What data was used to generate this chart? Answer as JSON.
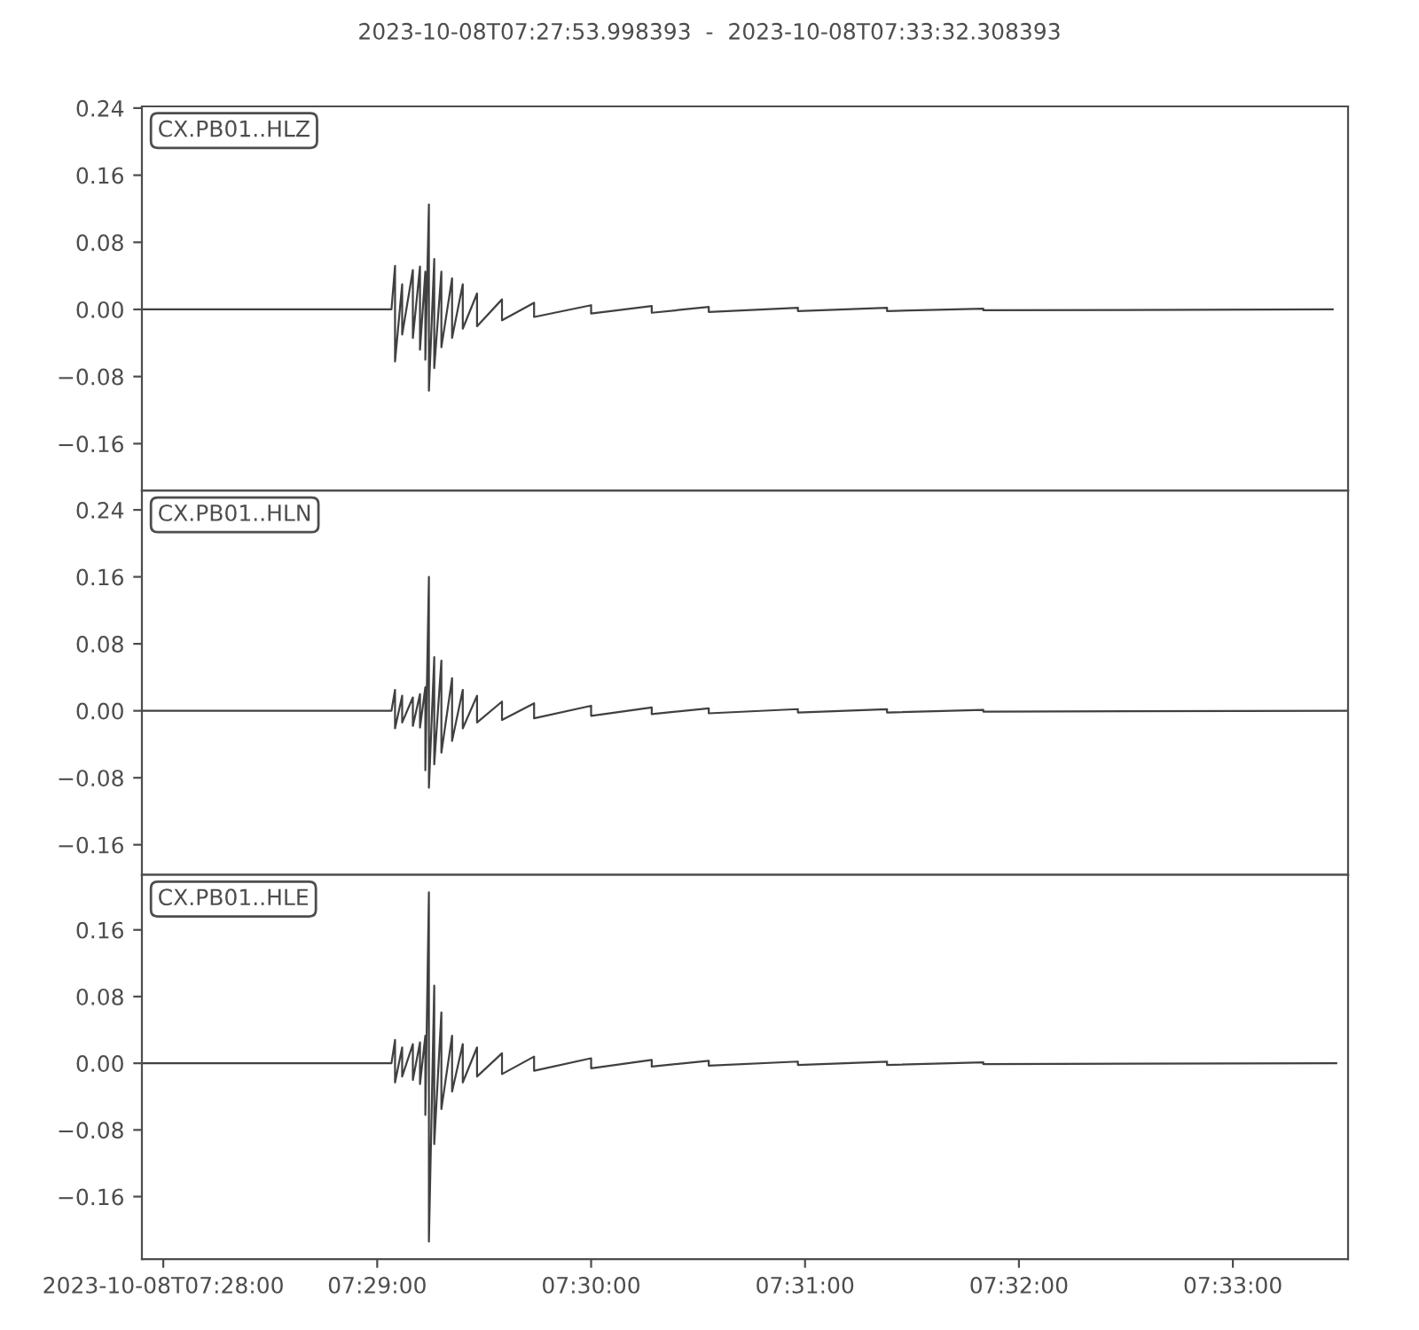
{
  "chart_data": [
    {
      "type": "line",
      "title": "2023-10-08T07:27:53.998393  -  2023-10-08T07:33:32.308393",
      "annotations": [
        "CX.PB01..HLZ"
      ],
      "tick_labels": "y",
      "grid": false,
      "marker": "none",
      "line_style": "solid",
      "xlim": [
        "2023-10-08T07:27:53.998393",
        "2023-10-08T07:33:32.308393"
      ],
      "ylim": [
        -0.216,
        0.242
      ],
      "yticks": [
        {
          "value": -0.16,
          "label": "−0.16"
        },
        {
          "value": -0.08,
          "label": "−0.08"
        },
        {
          "value": 0,
          "label": "0.00"
        },
        {
          "value": 0.08,
          "label": "0.08"
        },
        {
          "value": 0.16,
          "label": "0.16"
        },
        {
          "value": 0.24,
          "label": "0.24"
        }
      ],
      "x": [
        "2023-10-08T07:27:54",
        "2023-10-08T07:29:04",
        "2023-10-08T07:29:05",
        "2023-10-08T07:29:05",
        "2023-10-08T07:29:07",
        "2023-10-08T07:29:07",
        "2023-10-08T07:29:10",
        "2023-10-08T07:29:10",
        "2023-10-08T07:29:12",
        "2023-10-08T07:29:12",
        "2023-10-08T07:29:13.5",
        "2023-10-08T07:29:13.5",
        "2023-10-08T07:29:14.5",
        "2023-10-08T07:29:14.5",
        "2023-10-08T07:29:16",
        "2023-10-08T07:29:16",
        "2023-10-08T07:29:18",
        "2023-10-08T07:29:18",
        "2023-10-08T07:29:21",
        "2023-10-08T07:29:21",
        "2023-10-08T07:29:24",
        "2023-10-08T07:29:24",
        "2023-10-08T07:29:28",
        "2023-10-08T07:29:28",
        "2023-10-08T07:29:35",
        "2023-10-08T07:29:35",
        "2023-10-08T07:29:44",
        "2023-10-08T07:29:44",
        "2023-10-08T07:30:00",
        "2023-10-08T07:30:00",
        "2023-10-08T07:30:17",
        "2023-10-08T07:30:17",
        "2023-10-08T07:30:33",
        "2023-10-08T07:30:33",
        "2023-10-08T07:30:58",
        "2023-10-08T07:30:58",
        "2023-10-08T07:31:23",
        "2023-10-08T07:31:23",
        "2023-10-08T07:31:50",
        "2023-10-08T07:31:50",
        "2023-10-08T07:33:28"
      ],
      "series": [
        {
          "color": "#404040",
          "values": [
            0,
            0,
            0.052,
            -0.062,
            0.03,
            -0.03,
            0.047,
            -0.034,
            0.051,
            -0.048,
            0.045,
            -0.06,
            0.125,
            -0.097,
            0.06,
            -0.07,
            0.045,
            -0.045,
            0.037,
            -0.034,
            0.03,
            -0.023,
            0.019,
            -0.02,
            0.012,
            -0.013,
            0.008,
            -0.009,
            0.005,
            -0.005,
            0.004,
            -0.004,
            0.003,
            -0.003,
            0.002,
            -0.002,
            0.002,
            -0.002,
            0.001,
            -0.001,
            0
          ]
        }
      ]
    },
    {
      "type": "line",
      "annotations": [
        "CX.PB01..HLN"
      ],
      "tick_labels": "y",
      "grid": false,
      "marker": "none",
      "line_style": "solid",
      "xlim": [
        "2023-10-08T07:27:53.998393",
        "2023-10-08T07:33:32.308393"
      ],
      "ylim": [
        -0.196,
        0.263
      ],
      "yticks": [
        {
          "value": -0.16,
          "label": "−0.16"
        },
        {
          "value": -0.08,
          "label": "−0.08"
        },
        {
          "value": 0,
          "label": "0.00"
        },
        {
          "value": 0.08,
          "label": "0.08"
        },
        {
          "value": 0.16,
          "label": "0.16"
        },
        {
          "value": 0.24,
          "label": "0.24"
        }
      ],
      "x": [
        "2023-10-08T07:27:54",
        "2023-10-08T07:29:04",
        "2023-10-08T07:29:05",
        "2023-10-08T07:29:05",
        "2023-10-08T07:29:07",
        "2023-10-08T07:29:07",
        "2023-10-08T07:29:10",
        "2023-10-08T07:29:10",
        "2023-10-08T07:29:12",
        "2023-10-08T07:29:12",
        "2023-10-08T07:29:13.5",
        "2023-10-08T07:29:13.5",
        "2023-10-08T07:29:14.5",
        "2023-10-08T07:29:14.5",
        "2023-10-08T07:29:16",
        "2023-10-08T07:29:16",
        "2023-10-08T07:29:18",
        "2023-10-08T07:29:18",
        "2023-10-08T07:29:21",
        "2023-10-08T07:29:21",
        "2023-10-08T07:29:24",
        "2023-10-08T07:29:24",
        "2023-10-08T07:29:28",
        "2023-10-08T07:29:28",
        "2023-10-08T07:29:35",
        "2023-10-08T07:29:35",
        "2023-10-08T07:29:44",
        "2023-10-08T07:29:44",
        "2023-10-08T07:30:00",
        "2023-10-08T07:30:00",
        "2023-10-08T07:30:17",
        "2023-10-08T07:30:17",
        "2023-10-08T07:30:33",
        "2023-10-08T07:30:33",
        "2023-10-08T07:30:58",
        "2023-10-08T07:30:58",
        "2023-10-08T07:31:23",
        "2023-10-08T07:31:23",
        "2023-10-08T07:31:50",
        "2023-10-08T07:31:50",
        "2023-10-08T07:33:32"
      ],
      "series": [
        {
          "color": "#404040",
          "values": [
            0,
            0,
            0.025,
            -0.021,
            0.018,
            -0.014,
            0.016,
            -0.018,
            0.02,
            -0.02,
            0.028,
            -0.071,
            0.16,
            -0.092,
            0.064,
            -0.064,
            0.06,
            -0.05,
            0.039,
            -0.036,
            0.025,
            -0.021,
            0.018,
            -0.014,
            0.011,
            -0.011,
            0.009,
            -0.009,
            0.006,
            -0.006,
            0.004,
            -0.004,
            0.003,
            -0.003,
            0.002,
            -0.002,
            0.002,
            -0.002,
            0.001,
            -0.001,
            0
          ]
        }
      ]
    },
    {
      "type": "line",
      "annotations": [
        "CX.PB01..HLE"
      ],
      "grid": false,
      "marker": "none",
      "line_style": "solid",
      "xlim": [
        "2023-10-08T07:27:53.998393",
        "2023-10-08T07:33:32.308393"
      ],
      "xticks": [
        {
          "value": "2023-10-08T07:28:00",
          "label": "2023-10-08T07:28:00"
        },
        {
          "value": "2023-10-08T07:29:00",
          "label": "07:29:00"
        },
        {
          "value": "2023-10-08T07:30:00",
          "label": "07:30:00"
        },
        {
          "value": "2023-10-08T07:31:00",
          "label": "07:31:00"
        },
        {
          "value": "2023-10-08T07:32:00",
          "label": "07:32:00"
        },
        {
          "value": "2023-10-08T07:33:00",
          "label": "07:33:00"
        }
      ],
      "ylim": [
        -0.235,
        0.226
      ],
      "yticks": [
        {
          "value": -0.16,
          "label": "−0.16"
        },
        {
          "value": -0.08,
          "label": "−0.08"
        },
        {
          "value": 0,
          "label": "0.00"
        },
        {
          "value": 0.08,
          "label": "0.08"
        },
        {
          "value": 0.16,
          "label": "0.16"
        }
      ],
      "x": [
        "2023-10-08T07:27:54",
        "2023-10-08T07:29:04",
        "2023-10-08T07:29:05",
        "2023-10-08T07:29:05",
        "2023-10-08T07:29:07",
        "2023-10-08T07:29:07",
        "2023-10-08T07:29:10",
        "2023-10-08T07:29:10",
        "2023-10-08T07:29:12",
        "2023-10-08T07:29:12",
        "2023-10-08T07:29:13.5",
        "2023-10-08T07:29:13.5",
        "2023-10-08T07:29:14.5",
        "2023-10-08T07:29:14.5",
        "2023-10-08T07:29:16",
        "2023-10-08T07:29:16",
        "2023-10-08T07:29:18",
        "2023-10-08T07:29:18",
        "2023-10-08T07:29:21",
        "2023-10-08T07:29:21",
        "2023-10-08T07:29:24",
        "2023-10-08T07:29:24",
        "2023-10-08T07:29:28",
        "2023-10-08T07:29:28",
        "2023-10-08T07:29:35",
        "2023-10-08T07:29:35",
        "2023-10-08T07:29:44",
        "2023-10-08T07:29:44",
        "2023-10-08T07:30:00",
        "2023-10-08T07:30:00",
        "2023-10-08T07:30:17",
        "2023-10-08T07:30:17",
        "2023-10-08T07:30:33",
        "2023-10-08T07:30:33",
        "2023-10-08T07:30:58",
        "2023-10-08T07:30:58",
        "2023-10-08T07:31:23",
        "2023-10-08T07:31:23",
        "2023-10-08T07:31:50",
        "2023-10-08T07:31:50",
        "2023-10-08T07:33:29"
      ],
      "series": [
        {
          "color": "#404040",
          "values": [
            0,
            0,
            0.028,
            -0.023,
            0.019,
            -0.016,
            0.023,
            -0.02,
            0.025,
            -0.025,
            0.033,
            -0.062,
            0.205,
            -0.214,
            0.093,
            -0.097,
            0.061,
            -0.055,
            0.033,
            -0.034,
            0.023,
            -0.023,
            0.019,
            -0.016,
            0.012,
            -0.013,
            0.008,
            -0.009,
            0.006,
            -0.006,
            0.004,
            -0.004,
            0.003,
            -0.003,
            0.002,
            -0.002,
            0.002,
            -0.002,
            0.001,
            -0.001,
            0
          ]
        }
      ]
    }
  ]
}
